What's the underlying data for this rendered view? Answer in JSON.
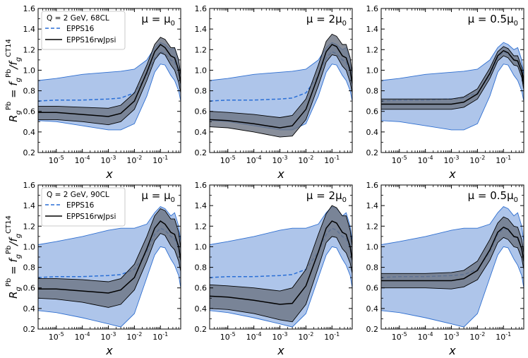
{
  "figure": {
    "ylabel_main": "R",
    "ylabel_sub": "g",
    "ylabel_sup": "Pb",
    "ylabel_rest": " = f",
    "ylabel_rest_sub": "g",
    "ylabel_rest_sup": "Pb",
    "ylabel_slash": "/f",
    "ylabel_den_sub": "g",
    "ylabel_den_sup": "CT14"
  },
  "chart_data": [
    {
      "type": "area",
      "row": 0,
      "col": 0,
      "panel_label": "μ = μ0",
      "legend": {
        "title": "Q = 2 GeV,  68CL",
        "entries": [
          "EPPS16",
          "EPPS16rwJpsi"
        ]
      },
      "xlabel": "x",
      "ylabel": "R_g^Pb = f_g^Pb/f_g^CT14",
      "xscale": "log",
      "xlim": [
        2e-06,
        0.6
      ],
      "ylim": [
        0.2,
        1.6
      ],
      "x": [
        2e-06,
        1e-05,
        0.0001,
        0.001,
        0.003,
        0.01,
        0.03,
        0.06,
        0.1,
        0.15,
        0.25,
        0.35,
        0.5,
        0.6
      ],
      "series": [
        {
          "name": "EPPS16",
          "role": "band",
          "upper": [
            0.9,
            0.92,
            0.96,
            0.98,
            0.99,
            1.01,
            1.1,
            1.22,
            1.27,
            1.25,
            1.2,
            1.22,
            1.1,
            0.95
          ],
          "lower": [
            0.51,
            0.5,
            0.46,
            0.42,
            0.42,
            0.48,
            0.75,
            0.98,
            1.06,
            1.05,
            0.95,
            0.9,
            0.8,
            0.7
          ]
        },
        {
          "name": "EPPS16",
          "role": "central",
          "values": [
            0.7,
            0.71,
            0.71,
            0.72,
            0.73,
            0.78,
            0.95,
            1.12,
            1.18,
            1.16,
            1.1,
            1.08,
            0.98,
            0.85
          ]
        },
        {
          "name": "EPPS16rwJpsi",
          "role": "band",
          "upper": [
            0.65,
            0.65,
            0.64,
            0.63,
            0.66,
            0.78,
            1.05,
            1.25,
            1.32,
            1.3,
            1.22,
            1.22,
            1.1,
            0.95
          ],
          "lower": [
            0.52,
            0.52,
            0.5,
            0.47,
            0.5,
            0.62,
            0.9,
            1.1,
            1.17,
            1.15,
            1.05,
            1.0,
            0.88,
            0.78
          ]
        },
        {
          "name": "EPPS16rwJpsi",
          "role": "central",
          "values": [
            0.59,
            0.59,
            0.57,
            0.55,
            0.58,
            0.7,
            0.98,
            1.18,
            1.25,
            1.22,
            1.14,
            1.12,
            1.0,
            0.87
          ]
        }
      ]
    },
    {
      "type": "area",
      "row": 0,
      "col": 1,
      "panel_label": "μ = 2μ0",
      "xlabel": "x",
      "xscale": "log",
      "xlim": [
        2e-06,
        0.6
      ],
      "ylim": [
        0.2,
        1.6
      ],
      "x": [
        2e-06,
        1e-05,
        0.0001,
        0.001,
        0.003,
        0.01,
        0.03,
        0.06,
        0.1,
        0.15,
        0.25,
        0.35,
        0.5,
        0.6
      ],
      "series": [
        {
          "name": "EPPS16",
          "role": "band",
          "upper": [
            0.9,
            0.92,
            0.96,
            0.98,
            0.99,
            1.01,
            1.1,
            1.22,
            1.27,
            1.25,
            1.2,
            1.22,
            1.1,
            0.95
          ],
          "lower": [
            0.51,
            0.5,
            0.46,
            0.42,
            0.42,
            0.48,
            0.75,
            0.98,
            1.06,
            1.05,
            0.95,
            0.9,
            0.8,
            0.7
          ]
        },
        {
          "name": "EPPS16",
          "role": "central",
          "values": [
            0.7,
            0.71,
            0.71,
            0.72,
            0.73,
            0.78,
            0.95,
            1.12,
            1.18,
            1.16,
            1.1,
            1.08,
            0.98,
            0.85
          ]
        },
        {
          "name": "EPPS16rwJpsi",
          "role": "band",
          "upper": [
            0.6,
            0.59,
            0.57,
            0.54,
            0.56,
            0.72,
            1.05,
            1.28,
            1.35,
            1.33,
            1.25,
            1.25,
            1.12,
            0.97
          ],
          "lower": [
            0.45,
            0.44,
            0.4,
            0.35,
            0.36,
            0.52,
            0.85,
            1.08,
            1.15,
            1.14,
            1.04,
            1.0,
            0.88,
            0.78
          ]
        },
        {
          "name": "EPPS16rwJpsi",
          "role": "central",
          "values": [
            0.52,
            0.51,
            0.48,
            0.44,
            0.46,
            0.62,
            0.95,
            1.18,
            1.25,
            1.23,
            1.14,
            1.12,
            1.0,
            0.87
          ]
        }
      ]
    },
    {
      "type": "area",
      "row": 0,
      "col": 2,
      "panel_label": "μ = 0.5μ0",
      "xlabel": "x",
      "xscale": "log",
      "xlim": [
        2e-06,
        0.6
      ],
      "ylim": [
        0.2,
        1.6
      ],
      "x": [
        2e-06,
        1e-05,
        0.0001,
        0.001,
        0.003,
        0.01,
        0.03,
        0.06,
        0.1,
        0.15,
        0.25,
        0.35,
        0.5,
        0.6
      ],
      "series": [
        {
          "name": "EPPS16",
          "role": "band",
          "upper": [
            0.9,
            0.92,
            0.96,
            0.98,
            0.99,
            1.01,
            1.1,
            1.22,
            1.27,
            1.25,
            1.2,
            1.22,
            1.1,
            0.95
          ],
          "lower": [
            0.51,
            0.5,
            0.46,
            0.42,
            0.42,
            0.48,
            0.75,
            0.98,
            1.06,
            1.05,
            0.95,
            0.9,
            0.8,
            0.7
          ]
        },
        {
          "name": "EPPS16",
          "role": "central",
          "values": [
            0.7,
            0.71,
            0.71,
            0.72,
            0.73,
            0.78,
            0.95,
            1.12,
            1.18,
            1.16,
            1.1,
            1.08,
            0.98,
            0.85
          ]
        },
        {
          "name": "EPPS16rwJpsi",
          "role": "band",
          "upper": [
            0.72,
            0.72,
            0.72,
            0.72,
            0.74,
            0.82,
            1.02,
            1.18,
            1.23,
            1.21,
            1.14,
            1.14,
            1.03,
            0.9
          ],
          "lower": [
            0.62,
            0.62,
            0.62,
            0.62,
            0.64,
            0.72,
            0.92,
            1.09,
            1.14,
            1.12,
            1.05,
            1.04,
            0.93,
            0.81
          ]
        },
        {
          "name": "EPPS16rwJpsi",
          "role": "central",
          "values": [
            0.67,
            0.67,
            0.67,
            0.67,
            0.69,
            0.77,
            0.97,
            1.14,
            1.19,
            1.17,
            1.1,
            1.09,
            0.98,
            0.86
          ]
        }
      ]
    },
    {
      "type": "area",
      "row": 1,
      "col": 0,
      "panel_label": "μ = μ0",
      "legend": {
        "title": "Q = 2 GeV,  90CL",
        "entries": [
          "EPPS16",
          "EPPS16rwJpsi"
        ]
      },
      "xlabel": "x",
      "ylabel": "R_g^Pb = f_g^Pb/f_g^CT14",
      "xscale": "log",
      "xlim": [
        2e-06,
        0.6
      ],
      "ylim": [
        0.2,
        1.6
      ],
      "x": [
        2e-06,
        1e-05,
        0.0001,
        0.001,
        0.003,
        0.01,
        0.03,
        0.06,
        0.1,
        0.15,
        0.25,
        0.35,
        0.5,
        0.6
      ],
      "series": [
        {
          "name": "EPPS16",
          "role": "band",
          "upper": [
            1.02,
            1.05,
            1.1,
            1.16,
            1.18,
            1.18,
            1.22,
            1.33,
            1.39,
            1.37,
            1.3,
            1.33,
            1.2,
            1.05
          ],
          "lower": [
            0.38,
            0.36,
            0.31,
            0.25,
            0.22,
            0.35,
            0.7,
            0.92,
            1.0,
            0.99,
            0.88,
            0.82,
            0.72,
            0.6
          ]
        },
        {
          "name": "EPPS16",
          "role": "central",
          "values": [
            0.7,
            0.71,
            0.71,
            0.72,
            0.73,
            0.78,
            0.95,
            1.12,
            1.18,
            1.16,
            1.1,
            1.08,
            0.98,
            0.85
          ]
        },
        {
          "name": "EPPS16rwJpsi",
          "role": "band",
          "upper": [
            0.69,
            0.69,
            0.68,
            0.66,
            0.69,
            0.83,
            1.1,
            1.3,
            1.37,
            1.35,
            1.27,
            1.27,
            1.14,
            0.98
          ],
          "lower": [
            0.5,
            0.49,
            0.46,
            0.41,
            0.44,
            0.58,
            0.86,
            1.06,
            1.13,
            1.11,
            1.01,
            0.97,
            0.86,
            0.76
          ]
        },
        {
          "name": "EPPS16rwJpsi",
          "role": "central",
          "values": [
            0.59,
            0.59,
            0.57,
            0.55,
            0.58,
            0.7,
            0.98,
            1.18,
            1.25,
            1.22,
            1.14,
            1.12,
            1.0,
            0.87
          ]
        }
      ]
    },
    {
      "type": "area",
      "row": 1,
      "col": 1,
      "panel_label": "μ = 2μ0",
      "xlabel": "x",
      "xscale": "log",
      "xlim": [
        2e-06,
        0.6
      ],
      "ylim": [
        0.2,
        1.6
      ],
      "x": [
        2e-06,
        1e-05,
        0.0001,
        0.001,
        0.003,
        0.01,
        0.03,
        0.06,
        0.1,
        0.15,
        0.25,
        0.35,
        0.5,
        0.6
      ],
      "series": [
        {
          "name": "EPPS16",
          "role": "band",
          "upper": [
            1.02,
            1.05,
            1.1,
            1.16,
            1.18,
            1.18,
            1.22,
            1.33,
            1.39,
            1.37,
            1.3,
            1.33,
            1.2,
            1.05
          ],
          "lower": [
            0.38,
            0.36,
            0.31,
            0.25,
            0.22,
            0.35,
            0.7,
            0.92,
            1.0,
            0.99,
            0.88,
            0.82,
            0.72,
            0.6
          ]
        },
        {
          "name": "EPPS16",
          "role": "central",
          "values": [
            0.7,
            0.71,
            0.71,
            0.72,
            0.73,
            0.78,
            0.95,
            1.12,
            1.18,
            1.16,
            1.1,
            1.08,
            0.98,
            0.85
          ]
        },
        {
          "name": "EPPS16rwJpsi",
          "role": "band",
          "upper": [
            0.63,
            0.62,
            0.6,
            0.57,
            0.6,
            0.78,
            1.12,
            1.32,
            1.4,
            1.38,
            1.3,
            1.3,
            1.16,
            1.0
          ],
          "lower": [
            0.4,
            0.39,
            0.35,
            0.29,
            0.27,
            0.44,
            0.8,
            1.04,
            1.1,
            1.09,
            0.98,
            0.94,
            0.84,
            0.74
          ]
        },
        {
          "name": "EPPS16rwJpsi",
          "role": "central",
          "values": [
            0.52,
            0.51,
            0.48,
            0.44,
            0.45,
            0.62,
            0.95,
            1.18,
            1.25,
            1.23,
            1.14,
            1.12,
            1.0,
            0.87
          ]
        }
      ]
    },
    {
      "type": "area",
      "row": 1,
      "col": 2,
      "panel_label": "μ = 0.5μ0",
      "xlabel": "x",
      "xscale": "log",
      "xlim": [
        2e-06,
        0.6
      ],
      "ylim": [
        0.2,
        1.6
      ],
      "x": [
        2e-06,
        1e-05,
        0.0001,
        0.001,
        0.003,
        0.01,
        0.03,
        0.06,
        0.1,
        0.15,
        0.25,
        0.35,
        0.5,
        0.6
      ],
      "series": [
        {
          "name": "EPPS16",
          "role": "band",
          "upper": [
            1.02,
            1.05,
            1.1,
            1.16,
            1.18,
            1.18,
            1.22,
            1.33,
            1.39,
            1.37,
            1.3,
            1.33,
            1.2,
            1.05
          ],
          "lower": [
            0.38,
            0.36,
            0.31,
            0.25,
            0.22,
            0.35,
            0.7,
            0.92,
            1.0,
            0.99,
            0.88,
            0.82,
            0.72,
            0.6
          ]
        },
        {
          "name": "EPPS16",
          "role": "central",
          "values": [
            0.7,
            0.71,
            0.71,
            0.72,
            0.73,
            0.78,
            0.95,
            1.12,
            1.18,
            1.16,
            1.1,
            1.08,
            0.98,
            0.85
          ]
        },
        {
          "name": "EPPS16rwJpsi",
          "role": "band",
          "upper": [
            0.74,
            0.74,
            0.74,
            0.75,
            0.77,
            0.86,
            1.07,
            1.23,
            1.29,
            1.27,
            1.2,
            1.19,
            1.07,
            0.94
          ],
          "lower": [
            0.6,
            0.6,
            0.6,
            0.59,
            0.61,
            0.68,
            0.87,
            1.04,
            1.09,
            1.07,
            1.0,
            0.99,
            0.89,
            0.78
          ]
        },
        {
          "name": "EPPS16rwJpsi",
          "role": "central",
          "values": [
            0.67,
            0.67,
            0.67,
            0.67,
            0.69,
            0.77,
            0.97,
            1.14,
            1.19,
            1.17,
            1.1,
            1.09,
            0.98,
            0.86
          ]
        }
      ]
    }
  ],
  "style": {
    "epps16_band_fill": "#aec5ea",
    "epps16_band_edge": "#2f6fd0",
    "epps16_line": "#2a6fd6",
    "rw_band_fill": "#6b7382",
    "rw_band_edge": "#000000",
    "rw_line": "#000000"
  }
}
